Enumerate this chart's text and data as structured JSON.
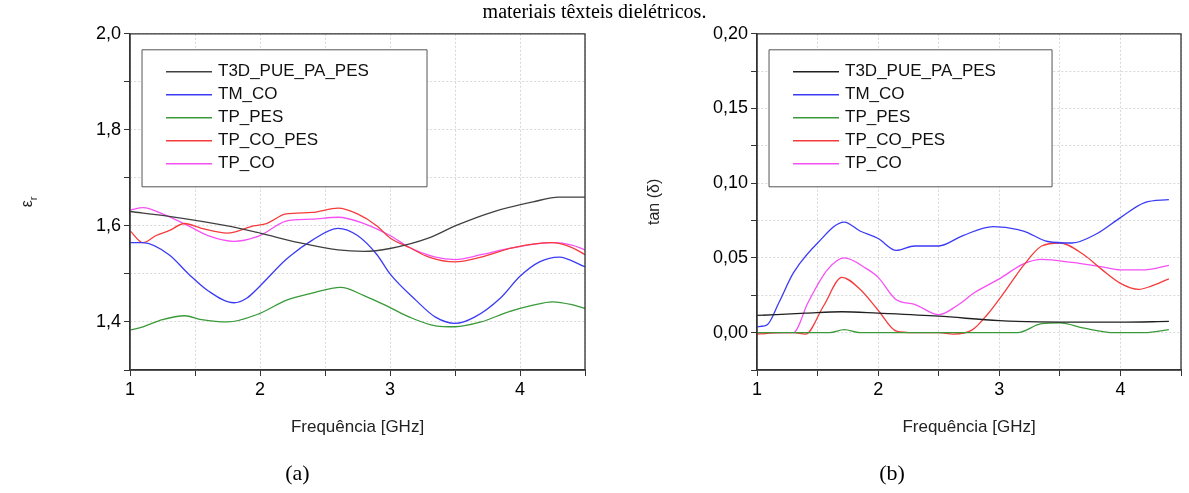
{
  "chart_data": [
    {
      "type": "line",
      "xlabel": "Frequência [GHz]",
      "ylabel": "ε$_{r}$",
      "annotations": [
        "materiais têxteis dielétricos.",
        "(a)"
      ],
      "legend": "top left",
      "grid": true,
      "xlim": [
        1,
        4.5
      ],
      "ylim": [
        1.3,
        2.0
      ],
      "xticks": [
        1,
        {
          "value": 1.5,
          "label": null
        },
        2,
        {
          "value": 2.5,
          "label": null
        },
        3,
        {
          "value": 3.5,
          "label": null
        },
        4,
        {
          "value": 4.5,
          "label": null
        }
      ],
      "yticks": [
        {
          "value": 1.3,
          "label": null
        },
        {
          "value": 1.4,
          "label": "1,4"
        },
        {
          "value": 1.5,
          "label": null
        },
        {
          "value": 1.6,
          "label": "1,6"
        },
        {
          "value": 1.7,
          "label": null
        },
        {
          "value": 1.8,
          "label": "1,8"
        },
        {
          "value": 1.9,
          "label": null
        },
        {
          "value": 2.0,
          "label": "2,0"
        }
      ],
      "series": [
        {
          "name": "T3D_PUE_PA_PES",
          "color": "#404040",
          "x": [
            1,
            1.3,
            1.75,
            2,
            2.3,
            2.6,
            2.8,
            3,
            3.3,
            3.5,
            3.8,
            4.1,
            4.3,
            4.5
          ],
          "values": [
            1.63,
            1.62,
            1.6,
            1.585,
            1.565,
            1.55,
            1.547,
            1.553,
            1.575,
            1.6,
            1.63,
            1.65,
            1.66,
            1.66
          ]
        },
        {
          "name": "TM_CO",
          "color": "#3b3bf5",
          "x": [
            1,
            1.1,
            1.3,
            1.45,
            1.6,
            1.8,
            1.9,
            2,
            2.2,
            2.4,
            2.6,
            2.75,
            2.9,
            3,
            3.2,
            3.35,
            3.5,
            3.65,
            3.85,
            4,
            4.15,
            4.3,
            4.5
          ],
          "values": [
            1.565,
            1.565,
            1.54,
            1.5,
            1.465,
            1.44,
            1.45,
            1.475,
            1.53,
            1.57,
            1.595,
            1.58,
            1.54,
            1.5,
            1.445,
            1.41,
            1.397,
            1.41,
            1.45,
            1.495,
            1.525,
            1.535,
            1.515
          ]
        },
        {
          "name": "TP_PES",
          "color": "#3a9a3a",
          "x": [
            1,
            1.1,
            1.25,
            1.42,
            1.55,
            1.75,
            2,
            2.2,
            2.4,
            2.62,
            2.8,
            3,
            3.15,
            3.35,
            3.5,
            3.7,
            3.9,
            4.1,
            4.25,
            4.4,
            4.5
          ],
          "values": [
            1.383,
            1.39,
            1.405,
            1.413,
            1.405,
            1.4,
            1.418,
            1.445,
            1.46,
            1.472,
            1.455,
            1.43,
            1.41,
            1.392,
            1.39,
            1.4,
            1.42,
            1.435,
            1.442,
            1.436,
            1.428
          ]
        },
        {
          "name": "TP_CO_PES",
          "color": "#f53b3b",
          "x": [
            1,
            1.1,
            1.2,
            1.3,
            1.42,
            1.55,
            1.75,
            1.95,
            2.05,
            2.2,
            2.4,
            2.6,
            2.75,
            2.9,
            3,
            3.15,
            3.3,
            3.5,
            3.7,
            3.95,
            4.25,
            4.4,
            4.5
          ],
          "values": [
            1.59,
            1.565,
            1.58,
            1.59,
            1.605,
            1.595,
            1.585,
            1.6,
            1.605,
            1.625,
            1.628,
            1.637,
            1.625,
            1.6,
            1.575,
            1.555,
            1.535,
            1.525,
            1.535,
            1.555,
            1.565,
            1.555,
            1.54
          ]
        },
        {
          "name": "TP_CO",
          "color": "#f550f5",
          "x": [
            1,
            1.1,
            1.25,
            1.45,
            1.6,
            1.8,
            2,
            2.2,
            2.4,
            2.6,
            2.8,
            3,
            3.15,
            3.35,
            3.5,
            3.7,
            3.95,
            4.25,
            4.4,
            4.5
          ],
          "values": [
            1.633,
            1.638,
            1.625,
            1.6,
            1.58,
            1.568,
            1.58,
            1.61,
            1.614,
            1.618,
            1.605,
            1.58,
            1.555,
            1.535,
            1.53,
            1.54,
            1.555,
            1.565,
            1.56,
            1.55
          ]
        }
      ]
    },
    {
      "type": "line",
      "xlabel": "Frequência [GHz]",
      "ylabel": "tan (δ)",
      "annotations": [
        "(b)"
      ],
      "legend": "top left",
      "grid": true,
      "xlim": [
        1,
        4.5
      ],
      "ylim": [
        -0.025,
        0.2
      ],
      "xticks": [
        1,
        {
          "value": 1.5,
          "label": null
        },
        2,
        {
          "value": 2.5,
          "label": null
        },
        3,
        {
          "value": 3.5,
          "label": null
        },
        4,
        {
          "value": 4.5,
          "label": null
        }
      ],
      "yticks": [
        {
          "value": -0.025,
          "label": null
        },
        {
          "value": 0,
          "label": "0,00"
        },
        {
          "value": 0.025,
          "label": null
        },
        {
          "value": 0.05,
          "label": "0,05"
        },
        {
          "value": 0.075,
          "label": null
        },
        {
          "value": 0.1,
          "label": "0,10"
        },
        {
          "value": 0.125,
          "label": null
        },
        {
          "value": 0.15,
          "label": "0,15"
        },
        {
          "value": 0.175,
          "label": null
        },
        {
          "value": 0.2,
          "label": "0,20"
        }
      ],
      "series": [
        {
          "name": "T3D_PUE_PA_PES",
          "color": "#202020",
          "x": [
            1,
            1.4,
            1.7,
            2,
            2.5,
            3,
            3.5,
            4,
            4.4
          ],
          "values": [
            0.0115,
            0.013,
            0.014,
            0.013,
            0.011,
            0.008,
            0.007,
            0.007,
            0.0075
          ]
        },
        {
          "name": "TM_CO",
          "color": "#3b3bf5",
          "x": [
            1,
            1.08,
            1.18,
            1.3,
            1.5,
            1.72,
            1.85,
            2,
            2.15,
            2.3,
            2.5,
            2.7,
            2.95,
            3.2,
            3.4,
            3.6,
            3.8,
            4,
            4.2,
            4.4
          ],
          "values": [
            0.004,
            0.005,
            0.02,
            0.04,
            0.06,
            0.074,
            0.068,
            0.063,
            0.055,
            0.058,
            0.058,
            0.065,
            0.071,
            0.068,
            0.061,
            0.06,
            0.066,
            0.077,
            0.087,
            0.089
          ]
        },
        {
          "name": "TP_PES",
          "color": "#3a9a3a",
          "x": [
            1,
            1.6,
            1.72,
            1.85,
            3.15,
            3.35,
            3.5,
            3.7,
            3.95,
            4.2,
            4.4
          ],
          "values": [
            0,
            0,
            0.002,
            0,
            0,
            0.006,
            0.0065,
            0.003,
            0,
            0,
            0.002
          ]
        },
        {
          "name": "TP_CO_PES",
          "color": "#f53b3b",
          "x": [
            1,
            1.2,
            1.3,
            1.4,
            1.55,
            1.7,
            1.85,
            2,
            2.15,
            2.3,
            2.5,
            2.62,
            2.78,
            2.9,
            3.05,
            3.2,
            3.35,
            3.5,
            3.7,
            3.85,
            4,
            4.15,
            4.25,
            4.4
          ],
          "values": [
            -0.001,
            0,
            0,
            -0.001,
            0.018,
            0.037,
            0.029,
            0.015,
            0.001,
            0,
            0,
            -0.001,
            0.002,
            0.012,
            0.028,
            0.045,
            0.058,
            0.06,
            0.052,
            0.042,
            0.033,
            0.029,
            0.031,
            0.036
          ]
        },
        {
          "name": "TP_CO",
          "color": "#f550f5",
          "x": [
            1,
            1.3,
            1.42,
            1.58,
            1.72,
            1.9,
            2,
            2.15,
            2.3,
            2.5,
            2.65,
            2.8,
            3,
            3.2,
            3.35,
            3.6,
            3.85,
            4,
            4.2,
            4.4
          ],
          "values": [
            0,
            0,
            0.02,
            0.042,
            0.05,
            0.043,
            0.037,
            0.022,
            0.019,
            0.012,
            0.018,
            0.027,
            0.036,
            0.046,
            0.049,
            0.047,
            0.044,
            0.042,
            0.042,
            0.045
          ]
        }
      ]
    }
  ]
}
